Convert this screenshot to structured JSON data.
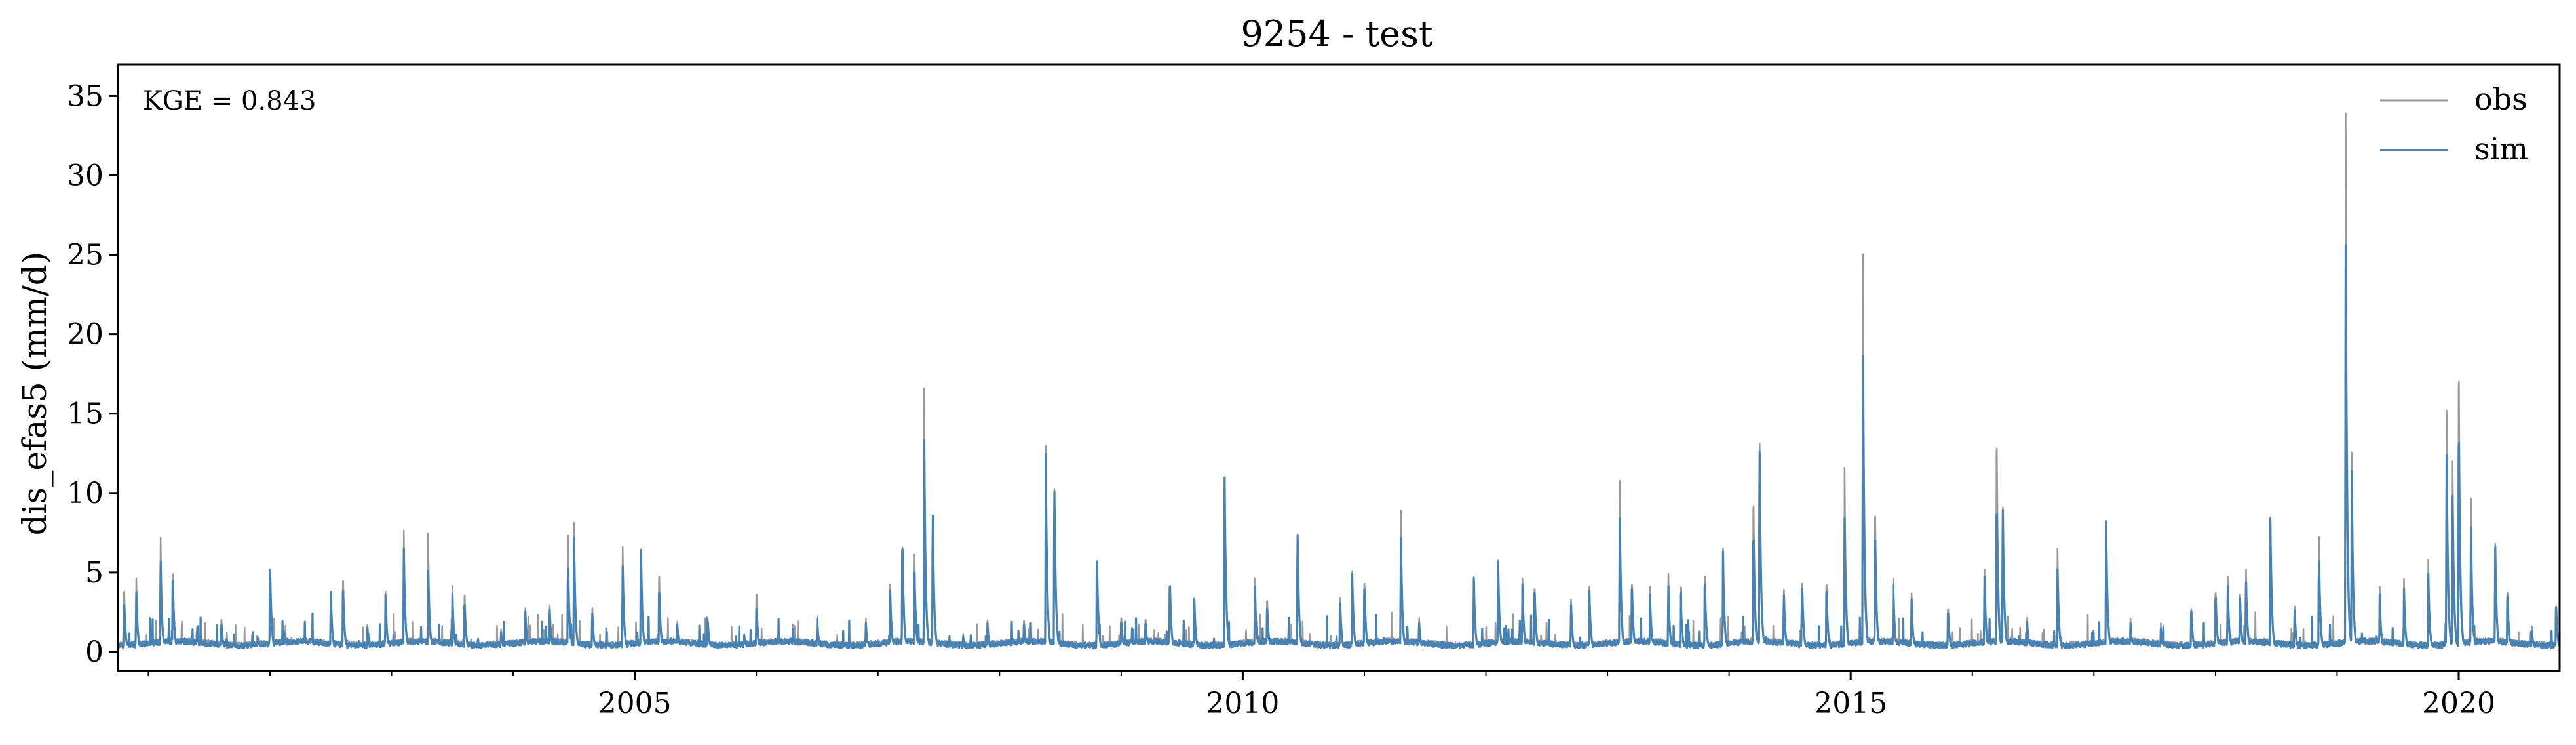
{
  "chart_data": {
    "type": "line",
    "title": "9254 - test",
    "xlabel": "",
    "ylabel": "dis_efas5 (mm/d)",
    "annotation": "KGE = 0.843",
    "xlim": [
      2000.75,
      2020.83
    ],
    "ylim": [
      -1.2,
      37
    ],
    "x_major_ticks": [
      2005,
      2010,
      2015,
      2020
    ],
    "x_major_tick_labels": [
      "2005",
      "2010",
      "2015",
      "2020"
    ],
    "y_ticks": [
      0,
      5,
      10,
      15,
      20,
      25,
      30,
      35
    ],
    "y_tick_labels": [
      "0",
      "5",
      "10",
      "15",
      "20",
      "25",
      "30",
      "35"
    ],
    "grid": false,
    "legend_position": "top-right",
    "series": [
      {
        "name": "obs",
        "color": "#999999",
        "baseline": 0.4,
        "peaks": [
          [
            2000.8,
            4.5
          ],
          [
            2000.9,
            4.9
          ],
          [
            2001.1,
            7.6
          ],
          [
            2001.2,
            5.8
          ],
          [
            2001.4,
            1.8
          ],
          [
            2001.6,
            2.4
          ],
          [
            2001.9,
            1.0
          ],
          [
            2002.0,
            6.0
          ],
          [
            2002.5,
            3.9
          ],
          [
            2002.6,
            5.3
          ],
          [
            2002.8,
            2.0
          ],
          [
            2002.95,
            3.8
          ],
          [
            2003.1,
            8.1
          ],
          [
            2003.3,
            7.9
          ],
          [
            2003.5,
            4.4
          ],
          [
            2003.6,
            4.2
          ],
          [
            2003.9,
            1.5
          ],
          [
            2004.1,
            2.9
          ],
          [
            2004.3,
            3.1
          ],
          [
            2004.45,
            8.2
          ],
          [
            2004.5,
            8.6
          ],
          [
            2004.65,
            3.1
          ],
          [
            2004.9,
            7.0
          ],
          [
            2005.05,
            7.2
          ],
          [
            2005.2,
            5.6
          ],
          [
            2005.35,
            1.9
          ],
          [
            2005.6,
            2.4
          ],
          [
            2005.9,
            1.2
          ],
          [
            2006.0,
            4.3
          ],
          [
            2006.3,
            1.8
          ],
          [
            2006.5,
            2.4
          ],
          [
            2006.9,
            2.2
          ],
          [
            2007.1,
            4.5
          ],
          [
            2007.2,
            7.8
          ],
          [
            2007.3,
            6.5
          ],
          [
            2007.38,
            16.8
          ],
          [
            2007.45,
            9.6
          ],
          [
            2007.7,
            1.2
          ],
          [
            2007.9,
            2.1
          ],
          [
            2008.2,
            2.3
          ],
          [
            2008.38,
            13.1
          ],
          [
            2008.45,
            11.5
          ],
          [
            2008.8,
            6.8
          ],
          [
            2009.0,
            2.5
          ],
          [
            2009.2,
            2.4
          ],
          [
            2009.4,
            4.8
          ],
          [
            2009.6,
            4.0
          ],
          [
            2009.85,
            12.3
          ],
          [
            2010.1,
            4.9
          ],
          [
            2010.2,
            3.8
          ],
          [
            2010.45,
            8.3
          ],
          [
            2010.8,
            4.0
          ],
          [
            2010.9,
            5.4
          ],
          [
            2011.0,
            5.1
          ],
          [
            2011.3,
            9.4
          ],
          [
            2011.45,
            2.4
          ],
          [
            2011.9,
            5.0
          ],
          [
            2012.1,
            6.1
          ],
          [
            2012.3,
            4.9
          ],
          [
            2012.4,
            4.7
          ],
          [
            2012.7,
            3.5
          ],
          [
            2012.85,
            4.6
          ],
          [
            2013.1,
            11.4
          ],
          [
            2013.2,
            5.0
          ],
          [
            2013.35,
            4.1
          ],
          [
            2013.5,
            5.2
          ],
          [
            2013.6,
            4.8
          ],
          [
            2013.8,
            5.6
          ],
          [
            2013.95,
            6.5
          ],
          [
            2014.2,
            10.9
          ],
          [
            2014.25,
            14.7
          ],
          [
            2014.45,
            4.4
          ],
          [
            2014.6,
            5.1
          ],
          [
            2014.8,
            5.0
          ],
          [
            2014.95,
            11.6
          ],
          [
            2015.1,
            26.5
          ],
          [
            2015.2,
            10.1
          ],
          [
            2015.35,
            4.6
          ],
          [
            2015.5,
            3.9
          ],
          [
            2015.8,
            3.2
          ],
          [
            2016.1,
            5.5
          ],
          [
            2016.2,
            15.2
          ],
          [
            2016.25,
            10.2
          ],
          [
            2016.45,
            2.4
          ],
          [
            2016.7,
            6.9
          ],
          [
            2017.1,
            8.5
          ],
          [
            2017.3,
            2.2
          ],
          [
            2017.55,
            1.8
          ],
          [
            2017.8,
            3.2
          ],
          [
            2018.0,
            4.4
          ],
          [
            2018.1,
            5.0
          ],
          [
            2018.2,
            4.3
          ],
          [
            2018.25,
            5.8
          ],
          [
            2018.45,
            9.5
          ],
          [
            2018.65,
            3.2
          ],
          [
            2018.85,
            8.1
          ],
          [
            2019.07,
            35.5
          ],
          [
            2019.12,
            13.0
          ],
          [
            2019.35,
            4.1
          ],
          [
            2019.55,
            4.6
          ],
          [
            2019.75,
            5.8
          ],
          [
            2019.9,
            16.1
          ],
          [
            2019.95,
            12.0
          ],
          [
            2020.0,
            20.2
          ],
          [
            2020.1,
            10.2
          ],
          [
            2020.3,
            7.2
          ],
          [
            2020.4,
            4.4
          ],
          [
            2020.6,
            1.9
          ],
          [
            2020.8,
            3.4
          ]
        ]
      },
      {
        "name": "sim",
        "color": "#4682b4",
        "baseline": 0.35,
        "peaks": [
          [
            2000.8,
            3.5
          ],
          [
            2000.9,
            4.0
          ],
          [
            2001.1,
            6.0
          ],
          [
            2001.2,
            5.3
          ],
          [
            2001.4,
            1.5
          ],
          [
            2001.6,
            2.0
          ],
          [
            2001.9,
            0.9
          ],
          [
            2002.0,
            6.1
          ],
          [
            2002.5,
            4.0
          ],
          [
            2002.6,
            4.6
          ],
          [
            2002.8,
            1.8
          ],
          [
            2002.95,
            3.6
          ],
          [
            2003.1,
            6.9
          ],
          [
            2003.3,
            5.4
          ],
          [
            2003.5,
            3.9
          ],
          [
            2003.6,
            3.5
          ],
          [
            2003.9,
            1.3
          ],
          [
            2004.1,
            2.7
          ],
          [
            2004.3,
            2.8
          ],
          [
            2004.45,
            5.9
          ],
          [
            2004.5,
            7.6
          ],
          [
            2004.65,
            2.7
          ],
          [
            2004.9,
            5.7
          ],
          [
            2005.05,
            7.2
          ],
          [
            2005.2,
            4.4
          ],
          [
            2005.35,
            1.7
          ],
          [
            2005.6,
            2.2
          ],
          [
            2005.9,
            1.1
          ],
          [
            2006.0,
            3.2
          ],
          [
            2006.3,
            1.5
          ],
          [
            2006.5,
            2.2
          ],
          [
            2006.9,
            1.9
          ],
          [
            2007.1,
            4.1
          ],
          [
            2007.2,
            7.7
          ],
          [
            2007.3,
            5.3
          ],
          [
            2007.38,
            13.5
          ],
          [
            2007.45,
            9.6
          ],
          [
            2007.7,
            1.0
          ],
          [
            2007.9,
            1.9
          ],
          [
            2008.2,
            2.0
          ],
          [
            2008.38,
            12.6
          ],
          [
            2008.45,
            11.3
          ],
          [
            2008.8,
            6.7
          ],
          [
            2009.0,
            2.2
          ],
          [
            2009.2,
            2.1
          ],
          [
            2009.4,
            4.9
          ],
          [
            2009.6,
            3.9
          ],
          [
            2009.85,
            12.3
          ],
          [
            2010.1,
            4.3
          ],
          [
            2010.2,
            3.2
          ],
          [
            2010.45,
            8.2
          ],
          [
            2010.8,
            3.6
          ],
          [
            2010.9,
            5.2
          ],
          [
            2011.0,
            4.7
          ],
          [
            2011.3,
            7.6
          ],
          [
            2011.45,
            2.0
          ],
          [
            2011.9,
            4.9
          ],
          [
            2012.1,
            6.0
          ],
          [
            2012.3,
            4.5
          ],
          [
            2012.4,
            4.4
          ],
          [
            2012.7,
            3.1
          ],
          [
            2012.85,
            4.3
          ],
          [
            2013.1,
            8.9
          ],
          [
            2013.2,
            4.7
          ],
          [
            2013.35,
            3.6
          ],
          [
            2013.5,
            4.4
          ],
          [
            2013.6,
            4.4
          ],
          [
            2013.8,
            5.0
          ],
          [
            2013.95,
            6.3
          ],
          [
            2014.2,
            8.3
          ],
          [
            2014.25,
            14.1
          ],
          [
            2014.45,
            4.0
          ],
          [
            2014.6,
            4.7
          ],
          [
            2014.8,
            4.5
          ],
          [
            2014.95,
            8.4
          ],
          [
            2015.1,
            19.7
          ],
          [
            2015.2,
            8.3
          ],
          [
            2015.35,
            4.2
          ],
          [
            2015.5,
            3.5
          ],
          [
            2015.8,
            2.9
          ],
          [
            2016.1,
            5.0
          ],
          [
            2016.2,
            10.3
          ],
          [
            2016.25,
            10.0
          ],
          [
            2016.45,
            2.1
          ],
          [
            2016.7,
            5.5
          ],
          [
            2017.1,
            8.7
          ],
          [
            2017.3,
            1.9
          ],
          [
            2017.55,
            1.5
          ],
          [
            2017.8,
            3.0
          ],
          [
            2018.0,
            4.0
          ],
          [
            2018.1,
            4.4
          ],
          [
            2018.2,
            4.0
          ],
          [
            2018.25,
            4.9
          ],
          [
            2018.45,
            9.4
          ],
          [
            2018.65,
            2.9
          ],
          [
            2018.85,
            6.4
          ],
          [
            2019.07,
            26.8
          ],
          [
            2019.12,
            11.8
          ],
          [
            2019.35,
            3.6
          ],
          [
            2019.55,
            4.0
          ],
          [
            2019.75,
            4.9
          ],
          [
            2019.9,
            13.1
          ],
          [
            2019.95,
            9.8
          ],
          [
            2020.0,
            15.6
          ],
          [
            2020.1,
            8.3
          ],
          [
            2020.3,
            7.0
          ],
          [
            2020.4,
            4.1
          ],
          [
            2020.6,
            1.6
          ],
          [
            2020.8,
            3.3
          ]
        ]
      }
    ]
  }
}
